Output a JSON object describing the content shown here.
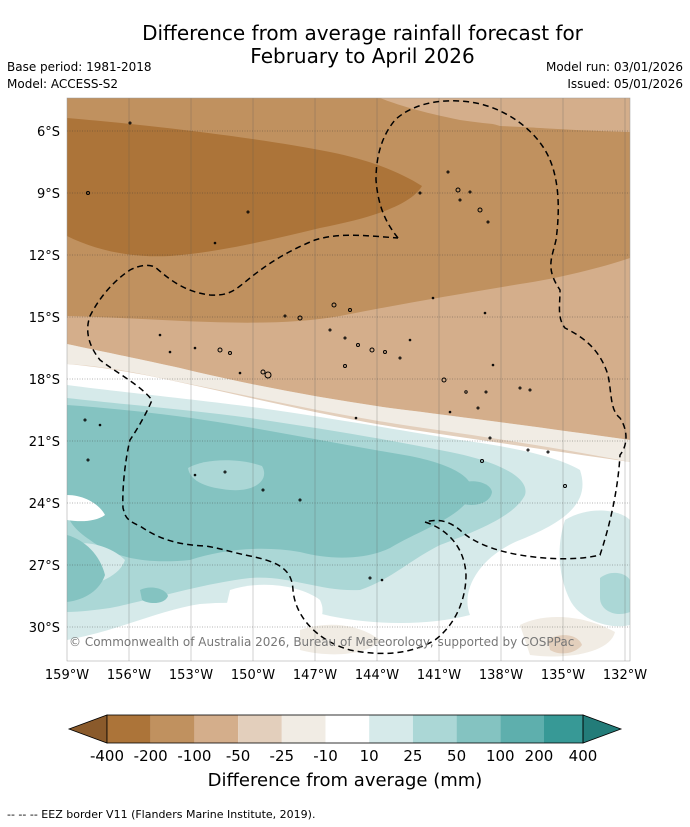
{
  "title": {
    "line1": "Difference from average rainfall forecast for",
    "line2": "February to April 2026"
  },
  "meta": {
    "base_period": "Base period: 1981-2018",
    "model": "Model: ACCESS-S2",
    "model_run": "Model run: 03/01/2026",
    "issued": "Issued: 05/01/2026"
  },
  "map": {
    "latitude_labels": [
      "6°S",
      "9°S",
      "12°S",
      "15°S",
      "18°S",
      "21°S",
      "24°S",
      "27°S",
      "30°S"
    ],
    "longitude_labels": [
      "159°W",
      "156°W",
      "153°W",
      "150°W",
      "147°W",
      "144°W",
      "141°W",
      "138°W",
      "135°W",
      "132°W"
    ],
    "copyright": "© Commonwealth of Australia 2026, Bureau of Meteorology, supported by COSPPac"
  },
  "colorbar": {
    "title": "Difference from average (mm)",
    "tick_labels": [
      "-400",
      "-200",
      "-100",
      "-50",
      "-25",
      "-10",
      "10",
      "25",
      "50",
      "100",
      "200",
      "400"
    ],
    "colors": {
      "below_min": "#8a5a2b",
      "c1": "#ac7439",
      "c2": "#c0915f",
      "c3": "#d4ae8b",
      "c4": "#e3cfbc",
      "c5": "#f1ece4",
      "c6": "#ffffff",
      "c7": "#d6eaea",
      "c8": "#abd7d6",
      "c9": "#84c3c1",
      "c10": "#5eafad",
      "c11": "#379996",
      "above_max": "#237c79"
    }
  },
  "footnote": "--  --  -- EEZ border V11 (Flanders Marine Institute, 2019)."
}
